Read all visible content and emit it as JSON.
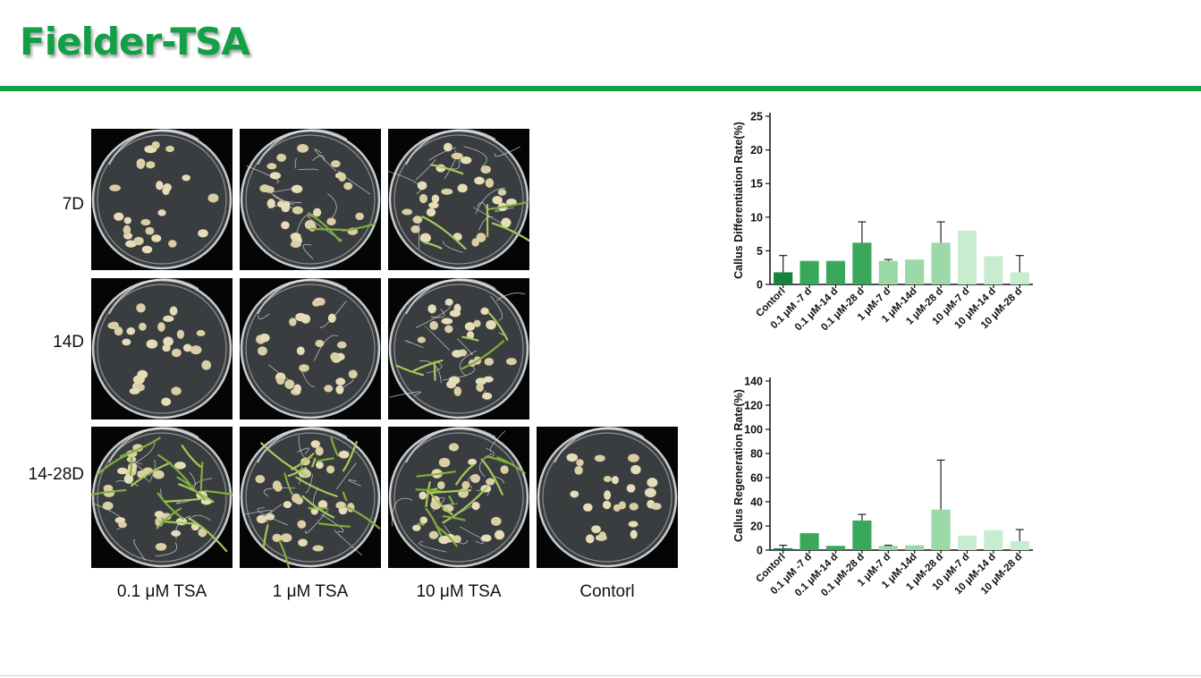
{
  "title": "Fielder-TSA",
  "row_labels": [
    "7D",
    "14D",
    "14-28D"
  ],
  "col_labels": [
    "0.1 μM TSA",
    "1 μM TSA",
    "10 μM TSA",
    "Contorl"
  ],
  "colors": {
    "accent": "#12a046",
    "bar_dark": "#17833d",
    "bar_mid": "#3aa85a",
    "bar_light": "#9bd9a6",
    "bar_pale": "#c8ecce"
  },
  "chart_data": [
    {
      "type": "bar",
      "title": "",
      "xlabel": "",
      "ylabel": "Callus Differentiation Rate(%)",
      "ylim": [
        0,
        25
      ],
      "yticks": [
        0,
        5,
        10,
        15,
        20,
        25
      ],
      "categories": [
        "Contorl",
        "0.1 μM -7 d",
        "0.1 μM-14 d",
        "0.1 μM-28 d",
        "1 μM-7 d",
        "1 μM-14d",
        "1 μM-28 d",
        "10 μM-7 d",
        "10 μM-14 d",
        "10 μM-28 d"
      ],
      "values": [
        1.8,
        3.5,
        3.5,
        6.2,
        3.5,
        3.7,
        6.2,
        8.0,
        4.2,
        1.8
      ],
      "errors": [
        2.5,
        0,
        0,
        3.1,
        0.2,
        0,
        3.1,
        0,
        0,
        2.5
      ],
      "bar_colors": [
        "#17833d",
        "#3aa85a",
        "#3aa85a",
        "#3aa85a",
        "#9bd9a6",
        "#9bd9a6",
        "#9bd9a6",
        "#c8ecce",
        "#c8ecce",
        "#c8ecce"
      ]
    },
    {
      "type": "bar",
      "title": "",
      "xlabel": "",
      "ylabel": "Callus Regeneration Rate(%)",
      "ylim": [
        0,
        140
      ],
      "yticks": [
        0,
        20,
        40,
        60,
        80,
        100,
        120,
        140
      ],
      "categories": [
        "Contorl",
        "0.1 μM -7 d",
        "0.1 μM-14 d",
        "0.1 μM-28 d",
        "1 μM-7 d",
        "1 μM-14d",
        "1 μM-28 d",
        "10 μM-7 d",
        "10 μM-14 d",
        "10 μM-28 d"
      ],
      "values": [
        1.5,
        14,
        3.5,
        24.5,
        3.5,
        4,
        33.5,
        12,
        16.5,
        7.5
      ],
      "errors": [
        2.5,
        0,
        0,
        5,
        0.5,
        0,
        41,
        0,
        0,
        9.5
      ],
      "bar_colors": [
        "#17833d",
        "#3aa85a",
        "#3aa85a",
        "#3aa85a",
        "#9bd9a6",
        "#9bd9a6",
        "#9bd9a6",
        "#c8ecce",
        "#c8ecce",
        "#c8ecce"
      ]
    }
  ]
}
